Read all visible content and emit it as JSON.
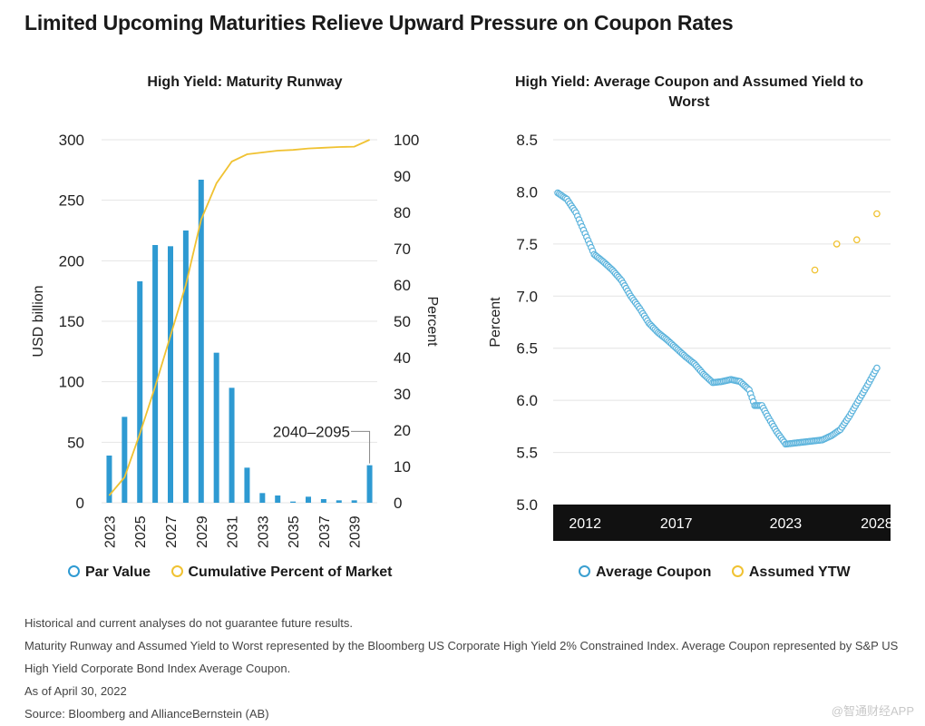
{
  "title": "Limited Upcoming Maturities Relieve Upward Pressure on Coupon Rates",
  "colors": {
    "bar": "#2e9ad2",
    "cumulative": "#f0c232",
    "coupon": "#5bb3dc",
    "ytw": "#f0c232",
    "band": "#111111"
  },
  "left_chart": {
    "title": "High Yield: Maturity Runway",
    "ylabel_left": "USD billion",
    "ylabel_right": "Percent",
    "annotation": "2040–2095",
    "legend": [
      "Par Value",
      "Cumulative Percent of Market"
    ]
  },
  "right_chart": {
    "title": "High Yield: Average Coupon and Assumed Yield to Worst",
    "ylabel": "Percent",
    "legend": [
      "Average Coupon",
      "Assumed YTW"
    ]
  },
  "chart_data": [
    {
      "type": "bar",
      "title": "High Yield: Maturity Runway",
      "categories": [
        "2023",
        "2024",
        "2025",
        "2026",
        "2027",
        "2028",
        "2029",
        "2030",
        "2031",
        "2032",
        "2033",
        "2034",
        "2035",
        "2036",
        "2037",
        "2038",
        "2039",
        "2040–2095"
      ],
      "x_tick_labels": [
        "2023",
        "2025",
        "2027",
        "2029",
        "2031",
        "2033",
        "2035",
        "2037",
        "2039"
      ],
      "ylabel": "USD billion",
      "ylim": [
        0,
        300
      ],
      "yticks": [
        0,
        50,
        100,
        150,
        200,
        250,
        300
      ],
      "y2label": "Percent",
      "y2lim": [
        0,
        100
      ],
      "y2ticks": [
        0,
        10,
        20,
        30,
        40,
        50,
        60,
        70,
        80,
        90,
        100
      ],
      "grid": true,
      "series": [
        {
          "name": "Par Value",
          "type": "bar",
          "axis": "left",
          "values": [
            39,
            71,
            183,
            213,
            212,
            225,
            267,
            124,
            95,
            29,
            8,
            6,
            1,
            5,
            3,
            2,
            2,
            31
          ]
        },
        {
          "name": "Cumulative Percent of Market",
          "type": "line",
          "axis": "right",
          "values": [
            2,
            7,
            19,
            32,
            46,
            60,
            78,
            88,
            94,
            96,
            96.5,
            97,
            97.2,
            97.6,
            97.8,
            98,
            98.1,
            100
          ]
        }
      ]
    },
    {
      "type": "scatter",
      "title": "High Yield: Average Coupon and Assumed Yield to Worst",
      "ylabel": "Percent",
      "ylim": [
        5.0,
        8.5
      ],
      "yticks": [
        5.0,
        5.5,
        6.0,
        6.5,
        7.0,
        7.5,
        8.0,
        8.5
      ],
      "xlim": [
        2010.25,
        2028.75
      ],
      "x_tick_labels": [
        "2012",
        "2017",
        "2023",
        "2028"
      ],
      "x_ticks": [
        2012,
        2017,
        2023,
        2028
      ],
      "grid": true,
      "series": [
        {
          "name": "Average Coupon",
          "points": [
            [
              2010.5,
              7.99
            ],
            [
              2011.0,
              7.93
            ],
            [
              2011.5,
              7.8
            ],
            [
              2012.0,
              7.6
            ],
            [
              2012.5,
              7.4
            ],
            [
              2013.0,
              7.33
            ],
            [
              2013.5,
              7.25
            ],
            [
              2014.0,
              7.15
            ],
            [
              2014.5,
              7.0
            ],
            [
              2015.0,
              6.88
            ],
            [
              2015.5,
              6.74
            ],
            [
              2016.0,
              6.65
            ],
            [
              2016.5,
              6.58
            ],
            [
              2017.0,
              6.5
            ],
            [
              2017.5,
              6.42
            ],
            [
              2018.0,
              6.35
            ],
            [
              2018.5,
              6.25
            ],
            [
              2019.0,
              6.17
            ],
            [
              2019.5,
              6.18
            ],
            [
              2020.0,
              6.2
            ],
            [
              2020.5,
              6.18
            ],
            [
              2021.0,
              6.1
            ],
            [
              2021.3,
              5.95
            ],
            [
              2021.7,
              5.95
            ],
            [
              2022.0,
              5.85
            ],
            [
              2022.5,
              5.7
            ],
            [
              2023.0,
              5.58
            ],
            [
              2023.5,
              5.59
            ],
            [
              2024.0,
              5.6
            ],
            [
              2024.5,
              5.61
            ],
            [
              2025.0,
              5.62
            ],
            [
              2025.5,
              5.66
            ],
            [
              2026.0,
              5.72
            ],
            [
              2026.5,
              5.85
            ],
            [
              2027.0,
              6.0
            ],
            [
              2027.5,
              6.15
            ],
            [
              2028.0,
              6.31
            ]
          ]
        },
        {
          "name": "Assumed YTW",
          "points": [
            [
              2024.6,
              7.25
            ],
            [
              2025.8,
              7.5
            ],
            [
              2026.9,
              7.54
            ],
            [
              2028.0,
              7.79
            ]
          ]
        }
      ]
    }
  ],
  "notes": [
    "Historical and current analyses do not guarantee future results.",
    "Maturity Runway and Assumed Yield to Worst represented by the Bloomberg US Corporate High Yield 2% Constrained Index. Average Coupon represented by S&P US",
    "High Yield Corporate Bond Index Average Coupon.",
    "As of April 30, 2022",
    "Source: Bloomberg and AllianceBernstein (AB)"
  ],
  "watermark": "@智通财经APP"
}
